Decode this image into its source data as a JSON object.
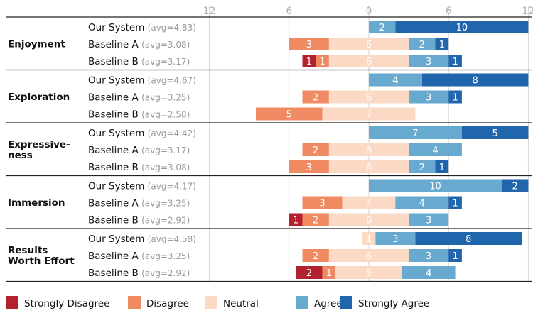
{
  "chart_data": {
    "type": "bar",
    "subtype": "diverging-stacked-horizontal",
    "xlim": [
      -12,
      12
    ],
    "ticks": [
      -12,
      -6,
      0,
      6,
      12
    ],
    "tick_labels": [
      "12",
      "6",
      "0",
      "6",
      "12"
    ],
    "segments": [
      {
        "key": "sd",
        "name": "Strongly Disagree",
        "color": "#b3202e",
        "text_color": "#ffffff"
      },
      {
        "key": "d",
        "name": "Disagree",
        "color": "#ef8a62",
        "text_color": "#ffffff"
      },
      {
        "key": "n",
        "name": "Neutral",
        "color": "#fbd9c5",
        "text_color": "#ffffff"
      },
      {
        "key": "a",
        "name": "Agree",
        "color": "#67a9cf",
        "text_color": "#ffffff"
      },
      {
        "key": "sa",
        "name": "Strongly Agree",
        "color": "#2166ac",
        "text_color": "#ffffff"
      }
    ],
    "groups": [
      {
        "name": "Enjoyment",
        "rows": [
          {
            "label": "Our System",
            "avg": "(avg=4.83)",
            "counts": {
              "sd": 0,
              "d": 0,
              "n": 0,
              "a": 2,
              "sa": 10
            }
          },
          {
            "label": "Baseline A",
            "avg": "(avg=3.08)",
            "counts": {
              "sd": 0,
              "d": 3,
              "n": 6,
              "a": 2,
              "sa": 1
            }
          },
          {
            "label": "Baseline B",
            "avg": "(avg=3.17)",
            "counts": {
              "sd": 1,
              "d": 1,
              "n": 6,
              "a": 3,
              "sa": 1
            }
          }
        ]
      },
      {
        "name": "Exploration",
        "rows": [
          {
            "label": "Our System",
            "avg": "(avg=4.67)",
            "counts": {
              "sd": 0,
              "d": 0,
              "n": 0,
              "a": 4,
              "sa": 8
            }
          },
          {
            "label": "Baseline A",
            "avg": "(avg=3.25)",
            "counts": {
              "sd": 0,
              "d": 2,
              "n": 6,
              "a": 3,
              "sa": 1
            }
          },
          {
            "label": "Baseline B",
            "avg": "(avg=2.58)",
            "counts": {
              "sd": 0,
              "d": 5,
              "n": 7,
              "a": 0,
              "sa": 0
            }
          }
        ]
      },
      {
        "name": "Expressive-ness",
        "name_lines": [
          "Expressive-",
          "ness"
        ],
        "rows": [
          {
            "label": "Our System",
            "avg": "(avg=4.42)",
            "counts": {
              "sd": 0,
              "d": 0,
              "n": 0,
              "a": 7,
              "sa": 5
            }
          },
          {
            "label": "Baseline A",
            "avg": "(avg=3.17)",
            "counts": {
              "sd": 0,
              "d": 2,
              "n": 6,
              "a": 4,
              "sa": 0
            }
          },
          {
            "label": "Baseline B",
            "avg": "(avg=3.08)",
            "counts": {
              "sd": 0,
              "d": 3,
              "n": 6,
              "a": 2,
              "sa": 1
            }
          }
        ]
      },
      {
        "name": "Immersion",
        "rows": [
          {
            "label": "Our System",
            "avg": "(avg=4.17)",
            "counts": {
              "sd": 0,
              "d": 0,
              "n": 0,
              "a": 10,
              "sa": 2
            }
          },
          {
            "label": "Baseline A",
            "avg": "(avg=3.25)",
            "counts": {
              "sd": 0,
              "d": 3,
              "n": 4,
              "a": 4,
              "sa": 1
            }
          },
          {
            "label": "Baseline B",
            "avg": "(avg=2.92)",
            "counts": {
              "sd": 1,
              "d": 2,
              "n": 6,
              "a": 3,
              "sa": 0
            }
          }
        ]
      },
      {
        "name": "Results Worth Effort",
        "name_lines": [
          "Results",
          "Worth Effort"
        ],
        "rows": [
          {
            "label": "Our System",
            "avg": "(avg=4.58)",
            "counts": {
              "sd": 0,
              "d": 0,
              "n": 1,
              "a": 3,
              "sa": 8
            }
          },
          {
            "label": "Baseline A",
            "avg": "(avg=3.25)",
            "counts": {
              "sd": 0,
              "d": 2,
              "n": 6,
              "a": 3,
              "sa": 1
            }
          },
          {
            "label": "Baseline B",
            "avg": "(avg=2.92)",
            "counts": {
              "sd": 2,
              "d": 1,
              "n": 5,
              "a": 4,
              "sa": 0
            }
          }
        ]
      }
    ],
    "grid": true,
    "legend_position": "bottom"
  }
}
